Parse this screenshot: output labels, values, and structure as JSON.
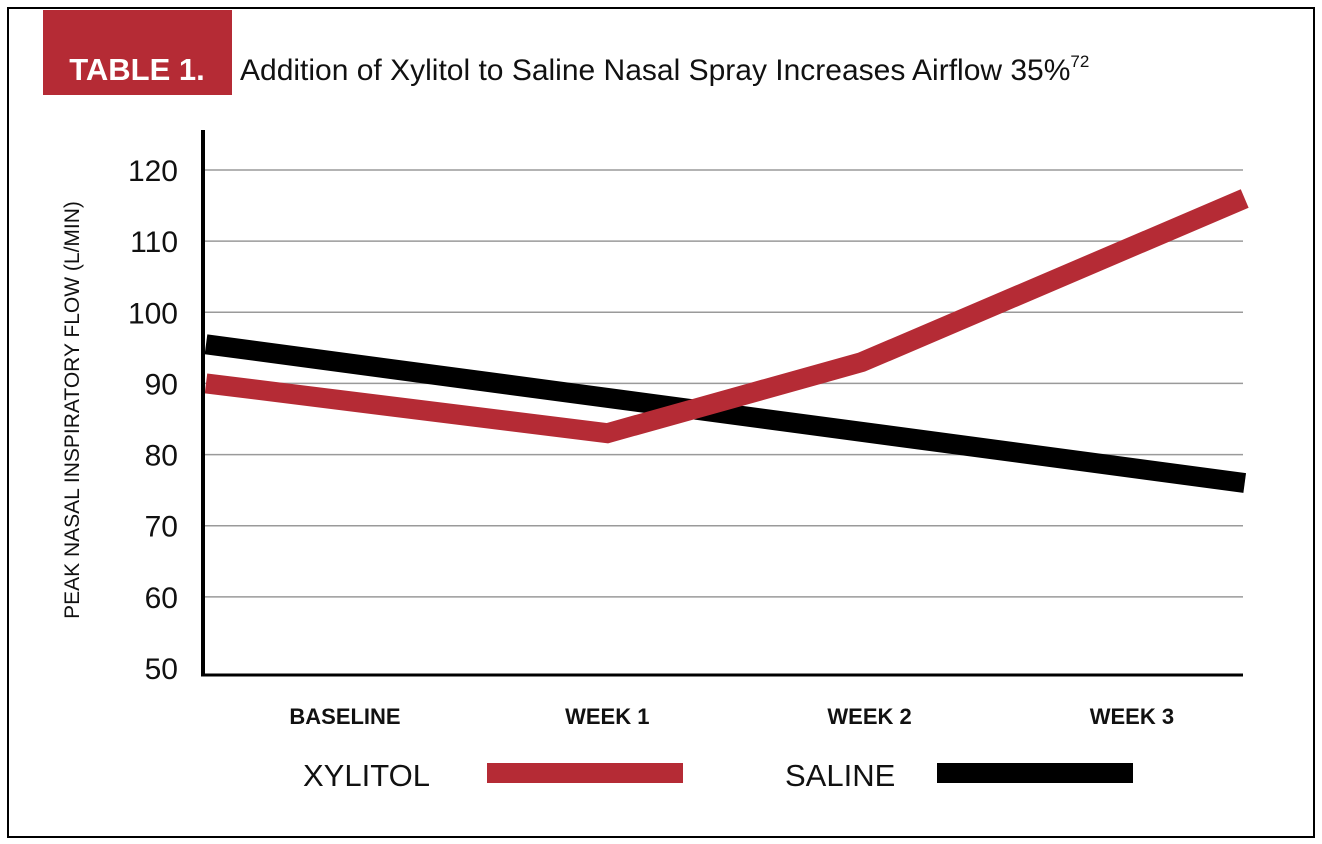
{
  "header": {
    "badge": "TABLE 1.",
    "title": "Addition of Xylitol to Saline Nasal Spray Increases Airflow 35%",
    "superscript": "72"
  },
  "chart_data": {
    "type": "line",
    "title": "Addition of Xylitol to Saline Nasal Spray Increases Airflow 35%",
    "xlabel": "",
    "ylabel": "PEAK NASAL INSPIRATORY FLOW (L/MIN)",
    "ylim": [
      50,
      125
    ],
    "yticks": [
      50,
      60,
      70,
      80,
      90,
      100,
      110,
      120
    ],
    "grid": true,
    "categories": [
      "BASELINE",
      "WEEK 1",
      "WEEK 2",
      "WEEK 3"
    ],
    "legend_position": "bottom",
    "series": [
      {
        "name": "XYLITOL",
        "color": "#b52b35",
        "x": [
          -0.53,
          1.0,
          1.97,
          3.43
        ],
        "values": [
          90,
          83,
          93,
          116
        ]
      },
      {
        "name": "SALINE",
        "color": "#000000",
        "x": [
          -0.53,
          3.43
        ],
        "values": [
          95.5,
          76
        ]
      }
    ]
  },
  "colors": {
    "accent": "#b52b35",
    "grid": "#9a9a9a",
    "frame": "#000000"
  }
}
